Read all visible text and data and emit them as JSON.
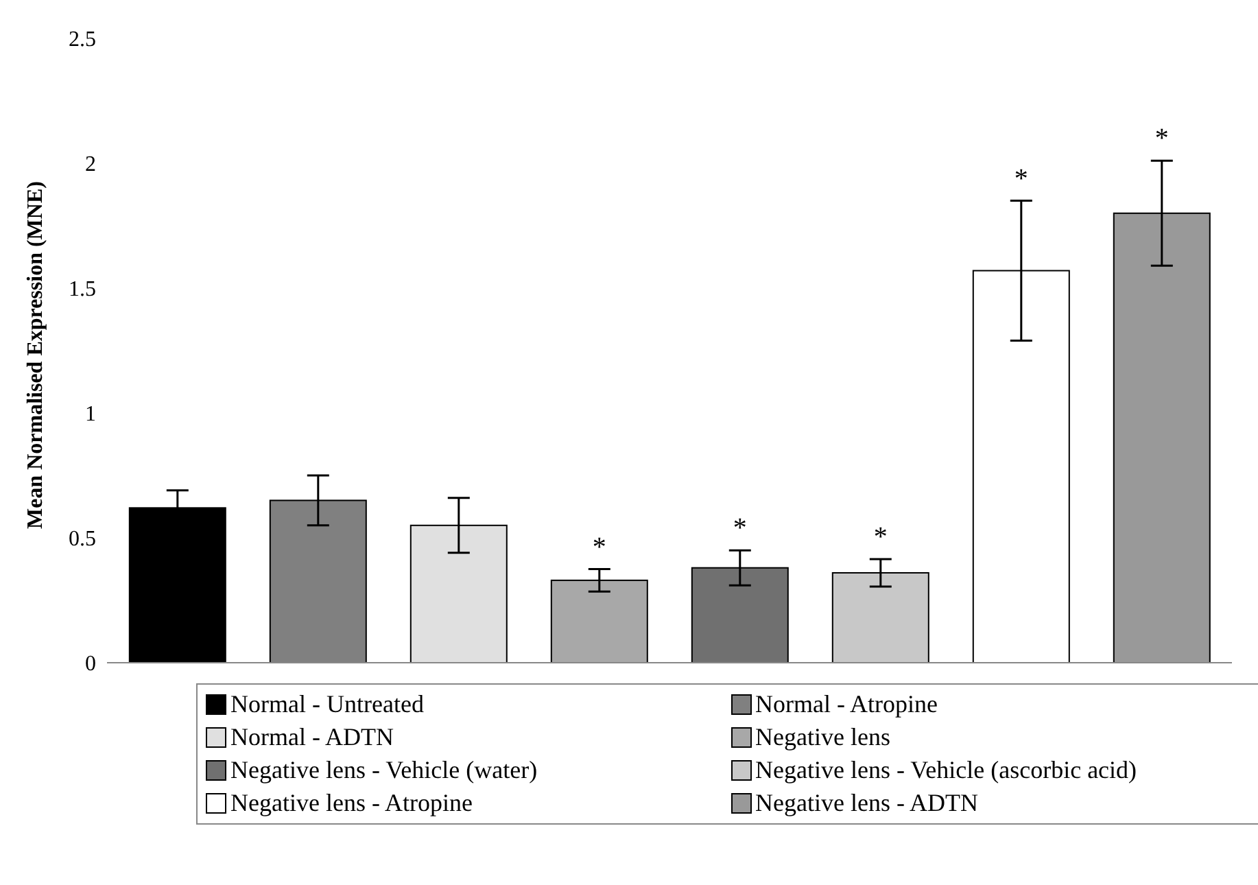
{
  "chart_data": {
    "type": "bar",
    "ylabel": "Mean Normalised Expression (MNE)",
    "categories": [
      null,
      null,
      null,
      null,
      null,
      null,
      null,
      null
    ],
    "series": [
      {
        "name": "Normal - Untreated",
        "color": "#000000",
        "values": [
          0.62,
          null,
          null,
          null,
          null,
          null,
          null,
          null
        ],
        "errors": [
          0.07,
          null,
          null,
          null,
          null,
          null,
          null,
          null
        ]
      },
      {
        "name": "Normal - Atropine",
        "color": "#808080",
        "values": [
          null,
          0.65,
          null,
          null,
          null,
          null,
          null,
          null
        ],
        "errors": [
          null,
          0.1,
          null,
          null,
          null,
          null,
          null,
          null
        ]
      },
      {
        "name": "Normal - ADTN",
        "color": "#e0e0e0",
        "values": [
          null,
          null,
          0.55,
          null,
          null,
          null,
          null,
          null
        ],
        "errors": [
          null,
          null,
          0.11,
          null,
          null,
          null,
          null,
          null
        ]
      },
      {
        "name": "Negative lens",
        "color": "#a8a8a8",
        "values": [
          null,
          null,
          null,
          0.33,
          null,
          null,
          null,
          null
        ],
        "errors": [
          null,
          null,
          null,
          0.045,
          null,
          null,
          null,
          null
        ],
        "value_labels": [
          null,
          null,
          null,
          "*",
          null,
          null,
          null,
          null
        ]
      },
      {
        "name": "Negative lens - Vehicle (water)",
        "color": "#707070",
        "values": [
          null,
          null,
          null,
          null,
          0.38,
          null,
          null,
          null
        ],
        "errors": [
          null,
          null,
          null,
          null,
          0.07,
          null,
          null,
          null
        ],
        "value_labels": [
          null,
          null,
          null,
          null,
          "*",
          null,
          null,
          null
        ]
      },
      {
        "name": "Negative lens - Vehicle (ascorbic acid)",
        "color": "#c8c8c8",
        "values": [
          null,
          null,
          null,
          null,
          null,
          0.36,
          null,
          null
        ],
        "errors": [
          null,
          null,
          null,
          null,
          null,
          0.055,
          null,
          null
        ],
        "value_labels": [
          null,
          null,
          null,
          null,
          null,
          "*",
          null,
          null
        ]
      },
      {
        "name": "Negative lens - Atropine",
        "color": "#ffffff",
        "values": [
          null,
          null,
          null,
          null,
          null,
          null,
          1.57,
          null
        ],
        "errors": [
          null,
          null,
          null,
          null,
          null,
          null,
          0.28,
          null
        ],
        "value_labels": [
          null,
          null,
          null,
          null,
          null,
          null,
          "*",
          null
        ]
      },
      {
        "name": "Negative lens - ADTN",
        "color": "#999999",
        "values": [
          null,
          null,
          null,
          null,
          null,
          null,
          null,
          1.8
        ],
        "errors": [
          null,
          null,
          null,
          null,
          null,
          null,
          null,
          0.21
        ],
        "value_labels": [
          null,
          null,
          null,
          null,
          null,
          null,
          null,
          "*"
        ]
      }
    ],
    "ylim": [
      0,
      2.5
    ],
    "yticks": [
      0,
      0.5,
      1,
      1.5,
      2,
      2.5
    ],
    "grid": false,
    "legend": "bottom"
  }
}
